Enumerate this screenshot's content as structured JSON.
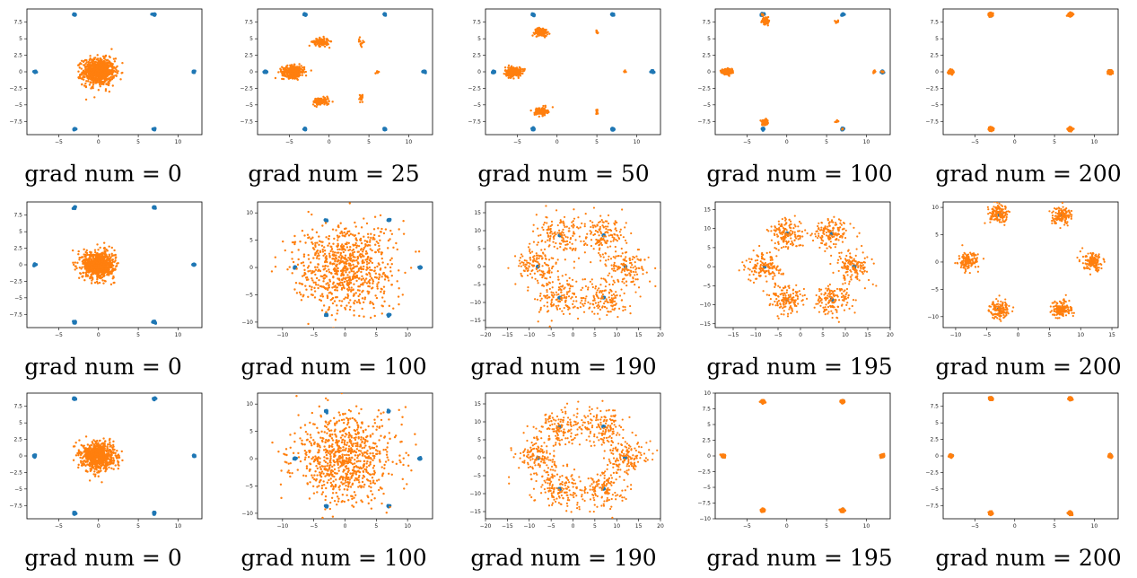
{
  "colors": {
    "target": "#1f77b4",
    "generated": "#ff7f0e"
  },
  "chart_data": [
    {
      "type": "scatter",
      "caption": "grad num = 0",
      "xlim": [
        -9,
        13
      ],
      "ylim": [
        -9.5,
        9.5
      ],
      "xticks": [
        -5,
        0,
        5,
        10
      ],
      "yticks": [
        -7.5,
        -5.0,
        -2.5,
        0.0,
        2.5,
        5.0,
        7.5
      ],
      "targets": [
        [
          -8,
          0
        ],
        [
          12,
          0
        ],
        [
          -3,
          8.66
        ],
        [
          7,
          8.66
        ],
        [
          -3,
          -8.66
        ],
        [
          7,
          -8.66
        ]
      ],
      "generated": {
        "pattern": "gaussian",
        "center": [
          0,
          0
        ],
        "spread": 1.0,
        "count": 800
      }
    },
    {
      "type": "scatter",
      "caption": "grad num = 25",
      "xlim": [
        -9,
        13
      ],
      "ylim": [
        -9.5,
        9.5
      ],
      "xticks": [
        -5,
        0,
        5,
        10
      ],
      "yticks": [
        -7.5,
        -5.0,
        -2.5,
        0.0,
        2.5,
        5.0,
        7.5
      ],
      "targets": [
        [
          -8,
          0
        ],
        [
          12,
          0
        ],
        [
          -3,
          8.66
        ],
        [
          7,
          8.66
        ],
        [
          -3,
          -8.66
        ],
        [
          7,
          -8.66
        ]
      ],
      "generated": {
        "pattern": "clusters",
        "clusters": [
          [
            -4.5,
            0,
            0.7,
            0.45,
            300
          ],
          [
            -1,
            4.5,
            0.5,
            0.3,
            120
          ],
          [
            -1,
            -4.5,
            0.5,
            0.3,
            120
          ],
          [
            4,
            4.5,
            0.15,
            0.3,
            15
          ],
          [
            4,
            -4,
            0.15,
            0.3,
            15
          ],
          [
            6,
            0,
            0.15,
            0.15,
            8
          ]
        ]
      }
    },
    {
      "type": "scatter",
      "caption": "grad num = 50",
      "xlim": [
        -9,
        13
      ],
      "ylim": [
        -9.5,
        9.5
      ],
      "xticks": [
        -5,
        0,
        5,
        10
      ],
      "yticks": [
        -7.5,
        -5.0,
        -2.5,
        0.0,
        2.5,
        5.0,
        7.5
      ],
      "targets": [
        [
          -8,
          0
        ],
        [
          12,
          0
        ],
        [
          -3,
          8.66
        ],
        [
          7,
          8.66
        ],
        [
          -3,
          -8.66
        ],
        [
          7,
          -8.66
        ]
      ],
      "generated": {
        "pattern": "clusters",
        "clusters": [
          [
            -5.5,
            0,
            0.5,
            0.35,
            300
          ],
          [
            -2,
            6,
            0.4,
            0.3,
            120
          ],
          [
            -2,
            -6,
            0.4,
            0.3,
            120
          ],
          [
            5,
            6,
            0.1,
            0.2,
            12
          ],
          [
            5,
            -6,
            0.1,
            0.2,
            12
          ],
          [
            8.5,
            0,
            0.15,
            0.1,
            8
          ]
        ]
      }
    },
    {
      "type": "scatter",
      "caption": "grad num = 100",
      "xlim": [
        -9,
        13
      ],
      "ylim": [
        -9.5,
        9.5
      ],
      "xticks": [
        -5,
        0,
        5,
        10
      ],
      "yticks": [
        -7.5,
        -5.0,
        -2.5,
        0.0,
        2.5,
        5.0,
        7.5
      ],
      "targets": [
        [
          -8,
          0
        ],
        [
          12,
          0
        ],
        [
          -3,
          8.66
        ],
        [
          7,
          8.66
        ],
        [
          -3,
          -8.66
        ],
        [
          7,
          -8.66
        ]
      ],
      "generated": {
        "pattern": "clusters",
        "clusters": [
          [
            -7.5,
            0,
            0.3,
            0.2,
            250
          ],
          [
            -2.7,
            7.7,
            0.2,
            0.2,
            100
          ],
          [
            -2.7,
            -7.7,
            0.2,
            0.2,
            100
          ],
          [
            6.3,
            7.6,
            0.1,
            0.1,
            10
          ],
          [
            6.3,
            -7.5,
            0.1,
            0.1,
            10
          ],
          [
            11,
            0,
            0.1,
            0.1,
            8
          ],
          [
            12,
            0,
            0.1,
            0.1,
            8
          ],
          [
            7,
            -8.66,
            0.08,
            0.08,
            5
          ],
          [
            -3,
            8.66,
            0.08,
            0.08,
            5
          ]
        ]
      }
    },
    {
      "type": "scatter",
      "caption": "grad num = 200",
      "xlim": [
        -9,
        13
      ],
      "ylim": [
        -9.5,
        9.5
      ],
      "xticks": [
        -5,
        0,
        5,
        10
      ],
      "yticks": [
        -7.5,
        -5.0,
        -2.5,
        0.0,
        2.5,
        5.0,
        7.5
      ],
      "targets": [
        [
          -8,
          0
        ],
        [
          12,
          0
        ],
        [
          -3,
          8.66
        ],
        [
          7,
          8.66
        ],
        [
          -3,
          -8.66
        ],
        [
          7,
          -8.66
        ]
      ],
      "generated": {
        "pattern": "at_targets",
        "spread": 0.12,
        "count": 150
      }
    },
    {
      "type": "scatter",
      "caption": "grad num = 0",
      "xlim": [
        -9,
        13
      ],
      "ylim": [
        -9.5,
        9.5
      ],
      "xticks": [
        -5,
        0,
        5,
        10
      ],
      "yticks": [
        -7.5,
        -5.0,
        -2.5,
        0.0,
        2.5,
        5.0,
        7.5
      ],
      "targets": [
        [
          -8,
          0
        ],
        [
          12,
          0
        ],
        [
          -3,
          8.66
        ],
        [
          7,
          8.66
        ],
        [
          -3,
          -8.66
        ],
        [
          7,
          -8.66
        ]
      ],
      "generated": {
        "pattern": "gaussian",
        "center": [
          0,
          0
        ],
        "spread": 1.0,
        "count": 800
      }
    },
    {
      "type": "scatter",
      "caption": "grad num = 100",
      "xlim": [
        -14,
        14
      ],
      "ylim": [
        -11,
        12
      ],
      "xticks": [
        -10,
        -5,
        0,
        5,
        10
      ],
      "yticks": [
        -10,
        -5,
        0,
        5,
        10
      ],
      "targets": [
        [
          -8,
          0
        ],
        [
          12,
          0
        ],
        [
          -3,
          8.66
        ],
        [
          7,
          8.66
        ],
        [
          -3,
          -8.66
        ],
        [
          7,
          -8.66
        ]
      ],
      "generated": {
        "pattern": "gaussian",
        "center": [
          0,
          0
        ],
        "spread": 4.0,
        "count": 800
      }
    },
    {
      "type": "scatter",
      "caption": "grad num = 190",
      "xlim": [
        -20,
        20
      ],
      "ylim": [
        -17,
        18
      ],
      "xticks": [
        -20,
        -15,
        -10,
        -5,
        0,
        5,
        10,
        15,
        20
      ],
      "yticks": [
        -15,
        -10,
        -5,
        0,
        5,
        10,
        15
      ],
      "targets": [
        [
          -8,
          0
        ],
        [
          12,
          0
        ],
        [
          -3,
          8.66
        ],
        [
          7,
          8.66
        ],
        [
          -3,
          -8.66
        ],
        [
          7,
          -8.66
        ]
      ],
      "generated": {
        "pattern": "around_targets",
        "spread": 2.6,
        "count": 140
      }
    },
    {
      "type": "scatter",
      "caption": "grad num = 195",
      "xlim": [
        -19,
        20
      ],
      "ylim": [
        -16,
        17
      ],
      "xticks": [
        -15,
        -10,
        -5,
        0,
        5,
        10,
        15,
        20
      ],
      "yticks": [
        -15,
        -10,
        -5,
        0,
        5,
        10,
        15
      ],
      "targets": [
        [
          -8,
          0
        ],
        [
          12,
          0
        ],
        [
          -3,
          8.66
        ],
        [
          7,
          8.66
        ],
        [
          -3,
          -8.66
        ],
        [
          7,
          -8.66
        ]
      ],
      "generated": {
        "pattern": "around_targets",
        "spread": 2.0,
        "count": 140
      }
    },
    {
      "type": "scatter",
      "caption": "grad num = 200",
      "xlim": [
        -12,
        16
      ],
      "ylim": [
        -12,
        11
      ],
      "xticks": [
        -10,
        -5,
        0,
        5,
        10,
        15
      ],
      "yticks": [
        -10,
        -5,
        0,
        5,
        10
      ],
      "targets": [
        [
          -8,
          0
        ],
        [
          12,
          0
        ],
        [
          -3,
          8.66
        ],
        [
          7,
          8.66
        ],
        [
          -3,
          -8.66
        ],
        [
          7,
          -8.66
        ]
      ],
      "generated": {
        "pattern": "around_targets",
        "spread": 0.8,
        "count": 140
      }
    },
    {
      "type": "scatter",
      "caption": "grad num = 0",
      "xlim": [
        -9,
        13
      ],
      "ylim": [
        -9.5,
        9.5
      ],
      "xticks": [
        -5,
        0,
        5,
        10
      ],
      "yticks": [
        -7.5,
        -5.0,
        -2.5,
        0.0,
        2.5,
        5.0,
        7.5
      ],
      "targets": [
        [
          -8,
          0
        ],
        [
          12,
          0
        ],
        [
          -3,
          8.66
        ],
        [
          7,
          8.66
        ],
        [
          -3,
          -8.66
        ],
        [
          7,
          -8.66
        ]
      ],
      "generated": {
        "pattern": "gaussian",
        "center": [
          0,
          0
        ],
        "spread": 1.0,
        "count": 800
      }
    },
    {
      "type": "scatter",
      "caption": "grad num = 100",
      "xlim": [
        -14,
        14
      ],
      "ylim": [
        -11,
        12
      ],
      "xticks": [
        -10,
        -5,
        0,
        5,
        10
      ],
      "yticks": [
        -10,
        -5,
        0,
        5,
        10
      ],
      "targets": [
        [
          -8,
          0
        ],
        [
          12,
          0
        ],
        [
          -3,
          8.66
        ],
        [
          7,
          8.66
        ],
        [
          -3,
          -8.66
        ],
        [
          7,
          -8.66
        ]
      ],
      "generated": {
        "pattern": "gaussian",
        "center": [
          0,
          0
        ],
        "spread": 4.0,
        "count": 800
      }
    },
    {
      "type": "scatter",
      "caption": "grad num = 190",
      "xlim": [
        -20,
        20
      ],
      "ylim": [
        -17,
        18
      ],
      "xticks": [
        -20,
        -15,
        -10,
        -5,
        0,
        5,
        10,
        15,
        20
      ],
      "yticks": [
        -15,
        -10,
        -5,
        0,
        5,
        10,
        15
      ],
      "targets": [
        [
          -8,
          0
        ],
        [
          12,
          0
        ],
        [
          -3,
          8.66
        ],
        [
          7,
          8.66
        ],
        [
          -3,
          -8.66
        ],
        [
          7,
          -8.66
        ]
      ],
      "generated": {
        "pattern": "around_targets",
        "spread": 2.6,
        "count": 140
      }
    },
    {
      "type": "scatter",
      "caption": "grad num = 195",
      "xlim": [
        -9,
        13
      ],
      "ylim": [
        -10,
        10
      ],
      "xticks": [
        -5,
        0,
        5,
        10
      ],
      "yticks": [
        -10.0,
        -7.5,
        -5.0,
        -2.5,
        0.0,
        2.5,
        5.0,
        7.5,
        10.0
      ],
      "targets": [
        [
          -8,
          0
        ],
        [
          12,
          0
        ],
        [
          -3,
          8.66
        ],
        [
          7,
          8.66
        ],
        [
          -3,
          -8.66
        ],
        [
          7,
          -8.66
        ]
      ],
      "generated": {
        "pattern": "at_targets",
        "spread": 0.1,
        "count": 150
      }
    },
    {
      "type": "scatter",
      "caption": "grad num = 200",
      "xlim": [
        -9,
        13
      ],
      "ylim": [
        -9.5,
        9.5
      ],
      "xticks": [
        -5,
        0,
        5,
        10
      ],
      "yticks": [
        -7.5,
        -5.0,
        -2.5,
        0.0,
        2.5,
        5.0,
        7.5
      ],
      "targets": [
        [
          -8,
          0
        ],
        [
          12,
          0
        ],
        [
          -3,
          8.66
        ],
        [
          7,
          8.66
        ],
        [
          -3,
          -8.66
        ],
        [
          7,
          -8.66
        ]
      ],
      "generated": {
        "pattern": "at_targets",
        "spread": 0.1,
        "count": 150
      }
    }
  ]
}
